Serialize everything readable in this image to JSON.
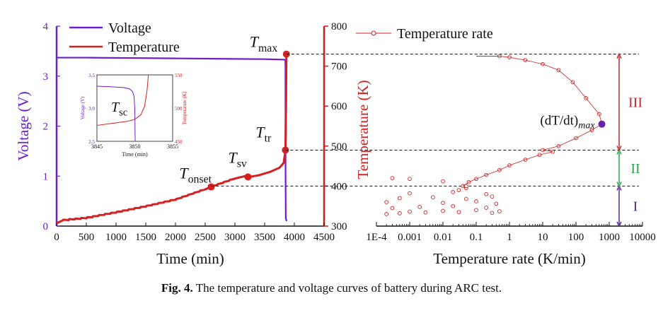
{
  "caption": {
    "label": "Fig. 4.",
    "text": "The temperature and voltage curves of battery during ARC test."
  },
  "colors": {
    "voltage": "#6a1fd1",
    "temperature": "#d42020",
    "axis": "#111111",
    "zone_I": "#5b2c91",
    "zone_II": "#2aa84a",
    "zone_III": "#c0282f",
    "max_point": "#6a1fb0"
  },
  "chart_data": [
    {
      "type": "line",
      "xlabel": "Time (min)",
      "ylabel": "Voltage (V)",
      "ylabel_right": "Temperature (K)",
      "xlim": [
        0,
        4500
      ],
      "ylim": [
        0,
        4
      ],
      "ylim_right": [
        300,
        800
      ],
      "x_ticks": [
        "0",
        "500",
        "1000",
        "1500",
        "2000",
        "2500",
        "3000",
        "3500",
        "4000",
        "4500"
      ],
      "y_ticks": [
        "0",
        "1",
        "2",
        "3",
        "4"
      ],
      "y_ticks_right": [
        "300",
        "400",
        "500",
        "600",
        "700",
        "800"
      ],
      "legend": [
        "Voltage",
        "Temperature"
      ],
      "legend_position": "top-left",
      "series": [
        {
          "name": "Voltage",
          "axis": "left",
          "x": [
            0,
            500,
            1000,
            1500,
            2000,
            2500,
            3000,
            3500,
            3840,
            3848,
            3850,
            3852,
            3856,
            3870
          ],
          "y": [
            3.37,
            3.37,
            3.365,
            3.36,
            3.355,
            3.35,
            3.345,
            3.34,
            3.33,
            3.31,
            3.2,
            1.0,
            0.15,
            0.1
          ]
        },
        {
          "name": "Temperature",
          "axis": "right",
          "x": [
            0,
            100,
            500,
            1000,
            1500,
            2000,
            2500,
            2600,
            3000,
            3200,
            3220,
            3280,
            3400,
            3600,
            3750,
            3820,
            3850,
            3860,
            3866
          ],
          "y": [
            307,
            314,
            320,
            334,
            349,
            366,
            392,
            398,
            419,
            426,
            423,
            424,
            427,
            436,
            446,
            458,
            490,
            600,
            730
          ]
        }
      ],
      "annotations": [
        {
          "label": "T",
          "sub": "onset",
          "x": 2600,
          "y": 398
        },
        {
          "label": "T",
          "sub": "sv",
          "x": 3220,
          "y": 423
        },
        {
          "label": "T",
          "sub": "tr",
          "x": 3850,
          "y": 490
        },
        {
          "label": "T",
          "sub": "max",
          "x": 3866,
          "y": 730
        }
      ],
      "inset": {
        "xlabel": "Time (min)",
        "ylabel": "Voltage (V)",
        "ylabel_right": "Temperature (K)",
        "xlim": [
          3845,
          3855
        ],
        "ylim": [
          2.5,
          3.5
        ],
        "ylim_right": [
          450,
          550
        ],
        "x_ticks": [
          "3845",
          "3850",
          "3855"
        ],
        "y_ticks": [
          "2.5",
          "3.0",
          "3.5"
        ],
        "y_ticks_right": [
          "450",
          "500",
          "550"
        ],
        "annotation": {
          "label": "T",
          "sub": "sc"
        },
        "series": [
          {
            "name": "Voltage",
            "x": [
              3845,
              3847,
              3848.5,
              3849.3,
              3849.7,
              3849.9,
              3850,
              3850.05
            ],
            "y": [
              3.33,
              3.32,
              3.31,
              3.29,
              3.25,
              3.18,
              3.0,
              2.5
            ]
          },
          {
            "name": "Temperature",
            "x": [
              3845,
              3847,
              3849,
              3850,
              3850.8,
              3851.3,
              3851.6,
              3851.8
            ],
            "y": [
              474,
              477,
              480,
              483,
              490,
              503,
              525,
              550
            ]
          }
        ]
      }
    },
    {
      "type": "scatter",
      "xlabel": "Temperature rate (K/min)",
      "ylabel": "Temperature (K)",
      "x_scale": "log",
      "xlim": [
        0.0001,
        10000
      ],
      "ylim": [
        300,
        800
      ],
      "x_ticks": [
        "1E-4",
        "0.001",
        "0.01",
        "0.1",
        "1",
        "10",
        "100",
        "1000",
        "10000"
      ],
      "legend": [
        "Temperature rate"
      ],
      "legend_position": "top-left",
      "series": [
        {
          "name": "Temperature rate",
          "x": [
            0.0002,
            0.0005,
            0.001,
            0.003,
            0.01,
            0.03,
            0.1,
            0.3,
            0.5,
            0.0003,
            0.002,
            0.02,
            0.2,
            0.0002,
            0.01,
            0.1,
            0.4,
            0.0005,
            0.005,
            0.05,
            0.3,
            0.001,
            0.02,
            0.2,
            0.03,
            0.05,
            0.04,
            0.06,
            0.1,
            0.2,
            0.5,
            1,
            3,
            8,
            20,
            10,
            30,
            100,
            300,
            600,
            500,
            200,
            80,
            30,
            10,
            3,
            1,
            0.5,
            0.05,
            0.01,
            0.001,
            0.0003
          ],
          "y": [
            330,
            332,
            336,
            334,
            338,
            335,
            340,
            333,
            337,
            345,
            348,
            350,
            346,
            360,
            358,
            362,
            356,
            370,
            372,
            368,
            374,
            382,
            385,
            380,
            390,
            395,
            400,
            410,
            418,
            428,
            440,
            452,
            466,
            478,
            486,
            490,
            500,
            520,
            540,
            555,
            580,
            620,
            660,
            690,
            705,
            715,
            722,
            725,
            400,
            412,
            418,
            420
          ]
        }
      ],
      "max_point": {
        "label": "(dT/dt)",
        "sub": "max",
        "x": 600,
        "y": 555
      },
      "zones": [
        {
          "label": "I",
          "from": 300,
          "to": 400
        },
        {
          "label": "II",
          "from": 400,
          "to": 490
        },
        {
          "label": "III",
          "from": 490,
          "to": 730
        }
      ],
      "reference_lines_y": [
        400,
        490,
        730
      ]
    }
  ]
}
